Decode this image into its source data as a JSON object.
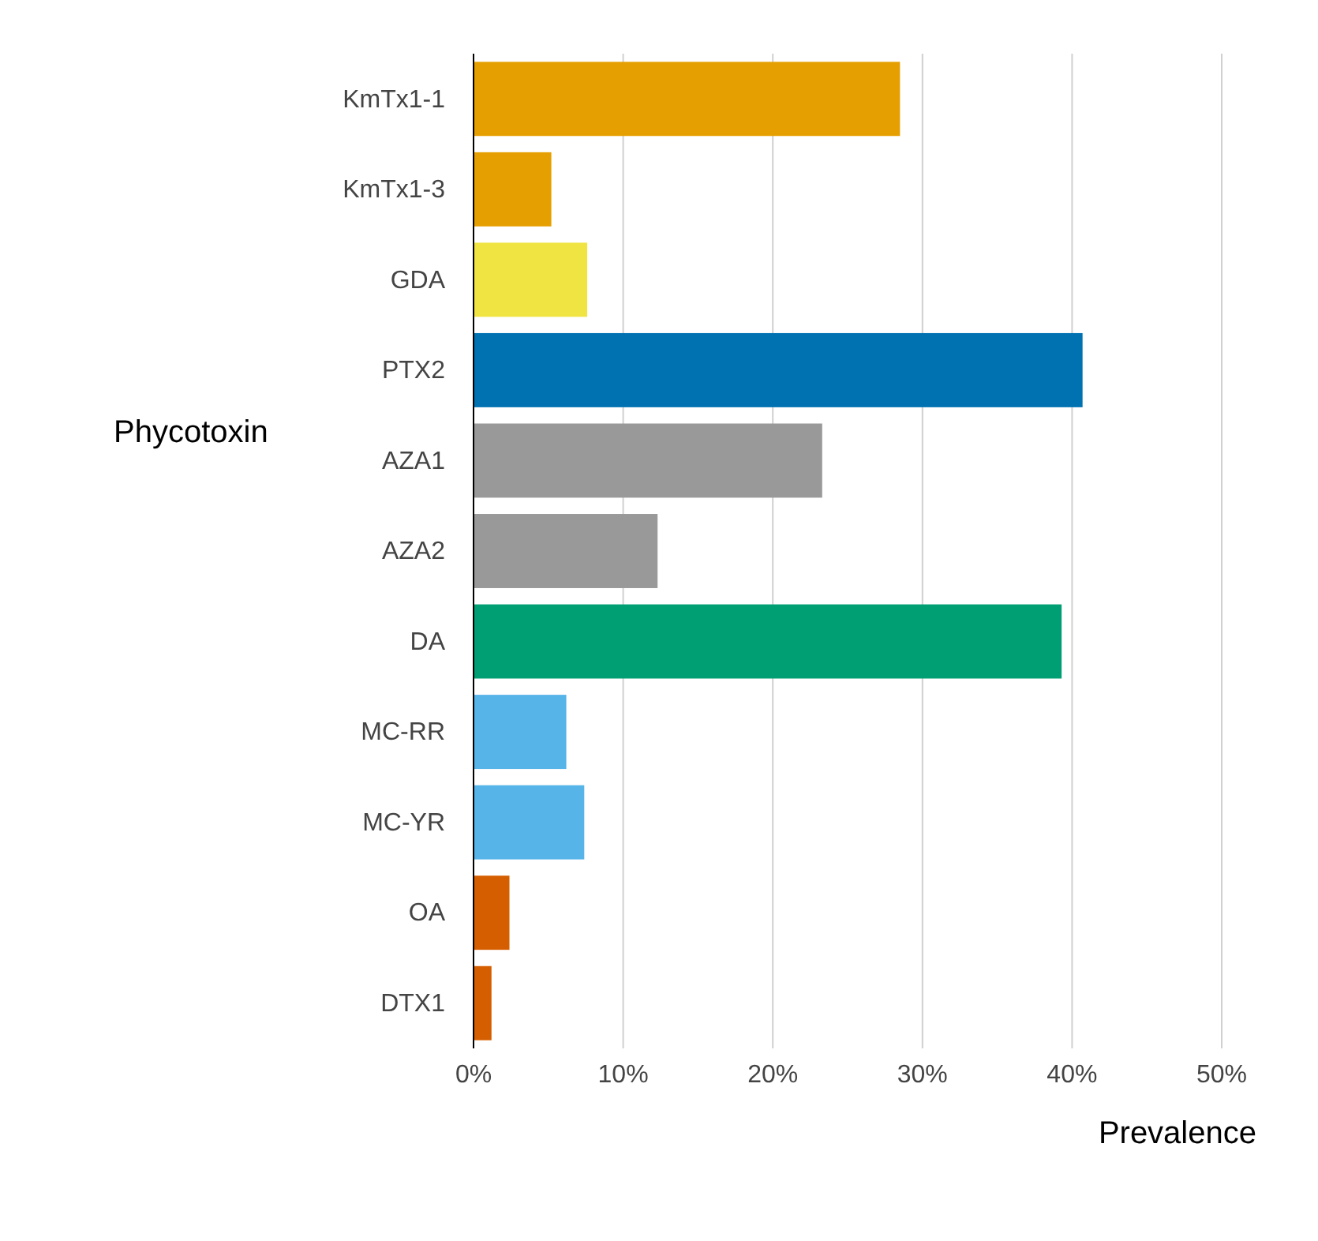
{
  "chart_data": {
    "type": "bar",
    "orientation": "horizontal",
    "xlabel": "Prevalence",
    "ylabel": "Phycotoxin",
    "categories": [
      "KmTx1-1",
      "KmTx1-3",
      "GDA",
      "PTX2",
      "AZA1",
      "AZA2",
      "DA",
      "MC-RR",
      "MC-YR",
      "OA",
      "DTX1"
    ],
    "values": [
      28.5,
      5.2,
      7.6,
      40.7,
      23.3,
      12.3,
      39.3,
      6.2,
      7.4,
      2.4,
      1.2
    ],
    "colors": [
      "#e69f00",
      "#e69f00",
      "#f0e442",
      "#0072b2",
      "#999999",
      "#999999",
      "#009e73",
      "#56b4e9",
      "#56b4e9",
      "#d55e00",
      "#d55e00"
    ],
    "xlim": [
      0,
      50
    ],
    "xticks": [
      {
        "value": 0,
        "label": "0%"
      },
      {
        "value": 10,
        "label": "10%"
      },
      {
        "value": 20,
        "label": "20%"
      },
      {
        "value": 30,
        "label": "30%"
      },
      {
        "value": 40,
        "label": "40%"
      },
      {
        "value": 50,
        "label": "50%"
      }
    ],
    "grid": "x"
  }
}
